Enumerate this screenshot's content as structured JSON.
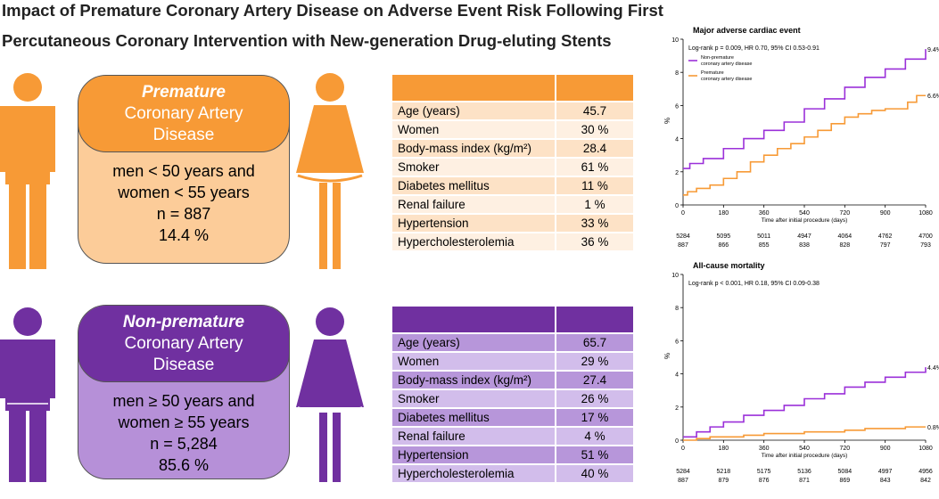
{
  "title": {
    "line1": "Impact of Premature Coronary Artery Disease on Adverse Event Risk Following First",
    "line2": "Percutaneous Coronary Intervention with New-generation Drug-eluting Stents"
  },
  "colors": {
    "premature": "#f79a36",
    "premature_light": "#fccc99",
    "premature_row_a": "#fde2c6",
    "premature_row_b": "#fef0e2",
    "nonpremature": "#7030a0",
    "nonpremature_light": "#b690d8",
    "nonpremature_row_a": "#b796da",
    "nonpremature_row_b": "#d2bdeb"
  },
  "premature": {
    "head_em": "Premature",
    "head_l2": "Coronary Artery",
    "head_l3": "Disease",
    "line1": "men < 50 years and",
    "line2": "women < 55 years",
    "line3": "n = 887",
    "line4": "14.4 %",
    "rows": [
      {
        "label": "Age (years)",
        "value": "45.7"
      },
      {
        "label": "Women",
        "value": "30 %"
      },
      {
        "label": "Body-mass index (kg/m²)",
        "value": "28.4"
      },
      {
        "label": "Smoker",
        "value": "61 %"
      },
      {
        "label": "Diabetes mellitus",
        "value": "11 %"
      },
      {
        "label": "Renal failure",
        "value": "1 %"
      },
      {
        "label": "Hypertension",
        "value": "33 %"
      },
      {
        "label": "Hypercholesterolemia",
        "value": "36 %"
      }
    ]
  },
  "nonpremature": {
    "head_em": "Non-premature",
    "head_l2": "Coronary Artery",
    "head_l3": "Disease",
    "line1": "men ≥ 50 years and",
    "line2": "women ≥ 55 years",
    "line3": "n = 5,284",
    "line4": "85.6 %",
    "rows": [
      {
        "label": "Age (years)",
        "value": "65.7"
      },
      {
        "label": "Women",
        "value": "29 %"
      },
      {
        "label": "Body-mass index (kg/m²)",
        "value": "27.4"
      },
      {
        "label": "Smoker",
        "value": "26 %"
      },
      {
        "label": "Diabetes mellitus",
        "value": "17 %"
      },
      {
        "label": "Renal failure",
        "value": "4 %"
      },
      {
        "label": "Hypertension",
        "value": "51 %"
      },
      {
        "label": "Hypercholesterolemia",
        "value": "40 %"
      }
    ]
  },
  "chart_data": [
    {
      "type": "line",
      "title": "Major adverse cardiac event",
      "logrank": "Log-rank p = 0.009, HR 0.70, 95% CI 0.53-0.91",
      "xlabel": "Time after initial procedure (days)",
      "ylabel": "%",
      "xlim": [
        0,
        1080
      ],
      "ylim": [
        0,
        10
      ],
      "xticks": [
        0,
        180,
        360,
        540,
        720,
        900,
        1080
      ],
      "yticks": [
        0,
        2,
        4,
        6,
        8,
        10
      ],
      "legend": [
        "Non-premature",
        "coronary artery disease",
        "Premature",
        "coronary artery disease"
      ],
      "series": [
        {
          "name": "Non-premature coronary artery disease",
          "color": "#9b30d9",
          "x": [
            0,
            30,
            90,
            180,
            270,
            360,
            450,
            540,
            630,
            720,
            810,
            900,
            990,
            1080
          ],
          "y": [
            2.2,
            2.5,
            2.8,
            3.4,
            4.0,
            4.5,
            5.0,
            5.8,
            6.4,
            7.1,
            7.7,
            8.2,
            8.8,
            9.4
          ],
          "end_label": "9.4%"
        },
        {
          "name": "Premature coronary artery disease",
          "color": "#f79a36",
          "x": [
            0,
            20,
            60,
            120,
            180,
            240,
            300,
            360,
            420,
            480,
            540,
            600,
            660,
            720,
            780,
            840,
            900,
            960,
            1000,
            1040,
            1060,
            1080
          ],
          "y": [
            0.6,
            0.8,
            1.0,
            1.2,
            1.6,
            2.0,
            2.6,
            3.0,
            3.4,
            3.7,
            4.1,
            4.5,
            4.9,
            5.3,
            5.5,
            5.7,
            5.8,
            5.8,
            6.2,
            6.6,
            6.6,
            6.6
          ],
          "end_label": "6.6%"
        }
      ],
      "risk_table": [
        [
          "5284",
          "5095",
          "5011",
          "4947",
          "4064",
          "4762",
          "4700"
        ],
        [
          "887",
          "866",
          "855",
          "838",
          "828",
          "797",
          "793"
        ]
      ]
    },
    {
      "type": "line",
      "title": "All-cause mortality",
      "logrank": "Log-rank p < 0.001, HR 0.18, 95% CI 0.09-0.38",
      "xlabel": "Time after initial procedure (days)",
      "ylabel": "%",
      "xlim": [
        0,
        1080
      ],
      "ylim": [
        0,
        10
      ],
      "xticks": [
        0,
        180,
        360,
        540,
        720,
        900,
        1080
      ],
      "yticks": [
        0,
        2,
        4,
        6,
        8,
        10
      ],
      "series": [
        {
          "name": "Non-premature coronary artery disease",
          "color": "#9b30d9",
          "x": [
            0,
            60,
            120,
            180,
            270,
            360,
            450,
            540,
            630,
            720,
            810,
            900,
            990,
            1080
          ],
          "y": [
            0.2,
            0.5,
            0.8,
            1.1,
            1.5,
            1.8,
            2.1,
            2.5,
            2.8,
            3.2,
            3.5,
            3.8,
            4.1,
            4.4
          ],
          "end_label": "4.4%"
        },
        {
          "name": "Premature coronary artery disease",
          "color": "#f79a36",
          "x": [
            0,
            60,
            120,
            180,
            270,
            360,
            450,
            540,
            630,
            720,
            810,
            900,
            990,
            1080
          ],
          "y": [
            0,
            0.1,
            0.2,
            0.2,
            0.3,
            0.4,
            0.4,
            0.5,
            0.5,
            0.6,
            0.7,
            0.7,
            0.8,
            0.8
          ],
          "end_label": "0.8%"
        }
      ],
      "risk_table": [
        [
          "5284",
          "5218",
          "5175",
          "5136",
          "5084",
          "4997",
          "4956"
        ],
        [
          "887",
          "879",
          "876",
          "871",
          "869",
          "843",
          "842"
        ]
      ]
    }
  ]
}
